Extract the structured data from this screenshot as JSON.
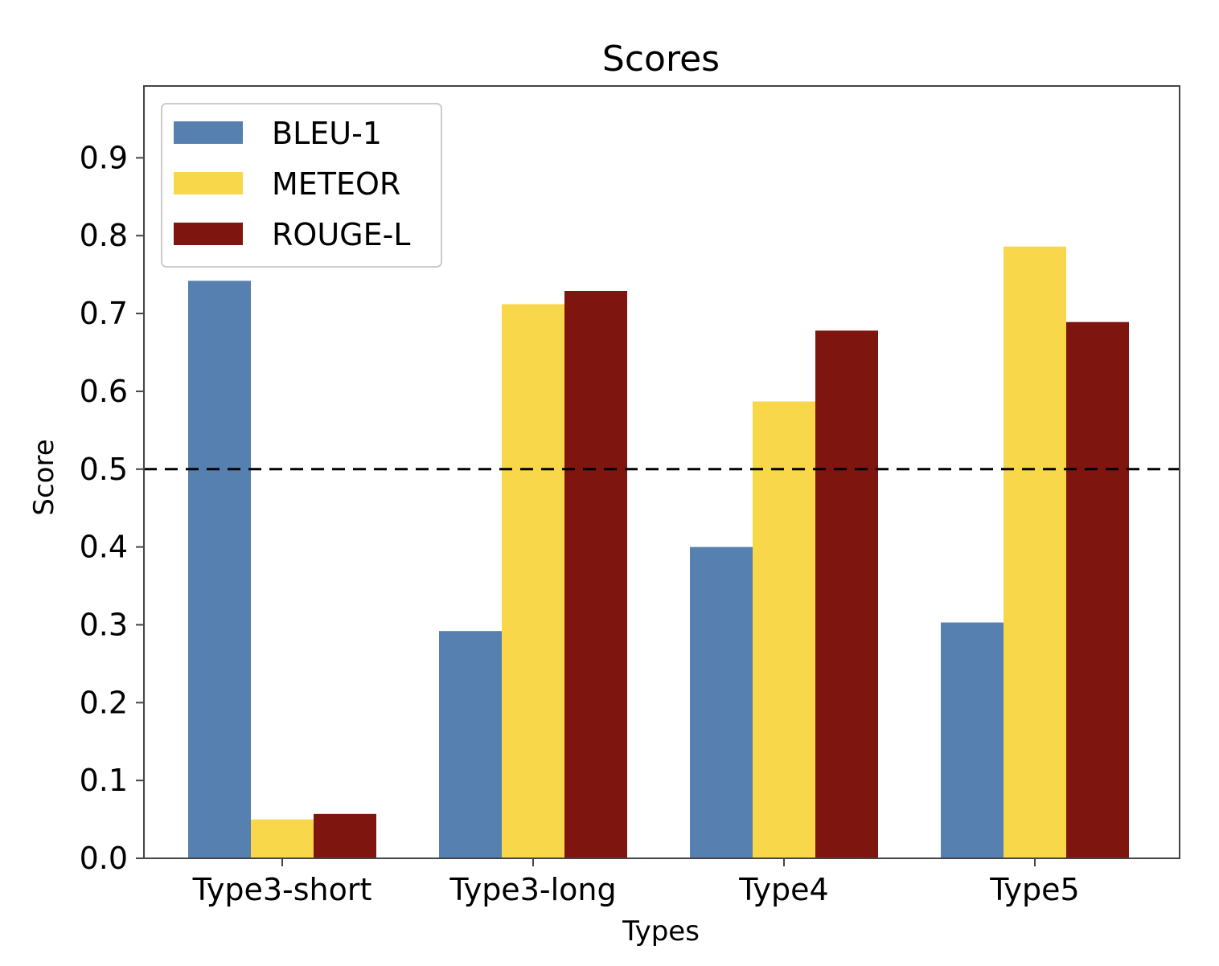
{
  "chart_data": {
    "type": "bar",
    "title": "Scores",
    "xlabel": "Types",
    "ylabel": "Score",
    "categories": [
      "Type3-short",
      "Type3-long",
      "Type4",
      "Type5"
    ],
    "series": [
      {
        "name": "BLEU-1",
        "color": "#5580b0",
        "values": [
          0.742,
          0.292,
          0.4,
          0.303
        ]
      },
      {
        "name": "METEOR",
        "color": "#f8d74a",
        "values": [
          0.05,
          0.712,
          0.587,
          0.786
        ]
      },
      {
        "name": "ROUGE-L",
        "color": "#7f150f",
        "values": [
          0.057,
          0.729,
          0.678,
          0.689
        ]
      }
    ],
    "ylim": [
      0,
      0.9923
    ],
    "yticks": [
      "0.0",
      "0.1",
      "0.2",
      "0.3",
      "0.4",
      "0.5",
      "0.6",
      "0.7",
      "0.8",
      "0.9"
    ],
    "reference_line": {
      "y": 0.5,
      "style": "dashed",
      "color": "#000000"
    },
    "legend_position": "top-left",
    "grid": false
  }
}
